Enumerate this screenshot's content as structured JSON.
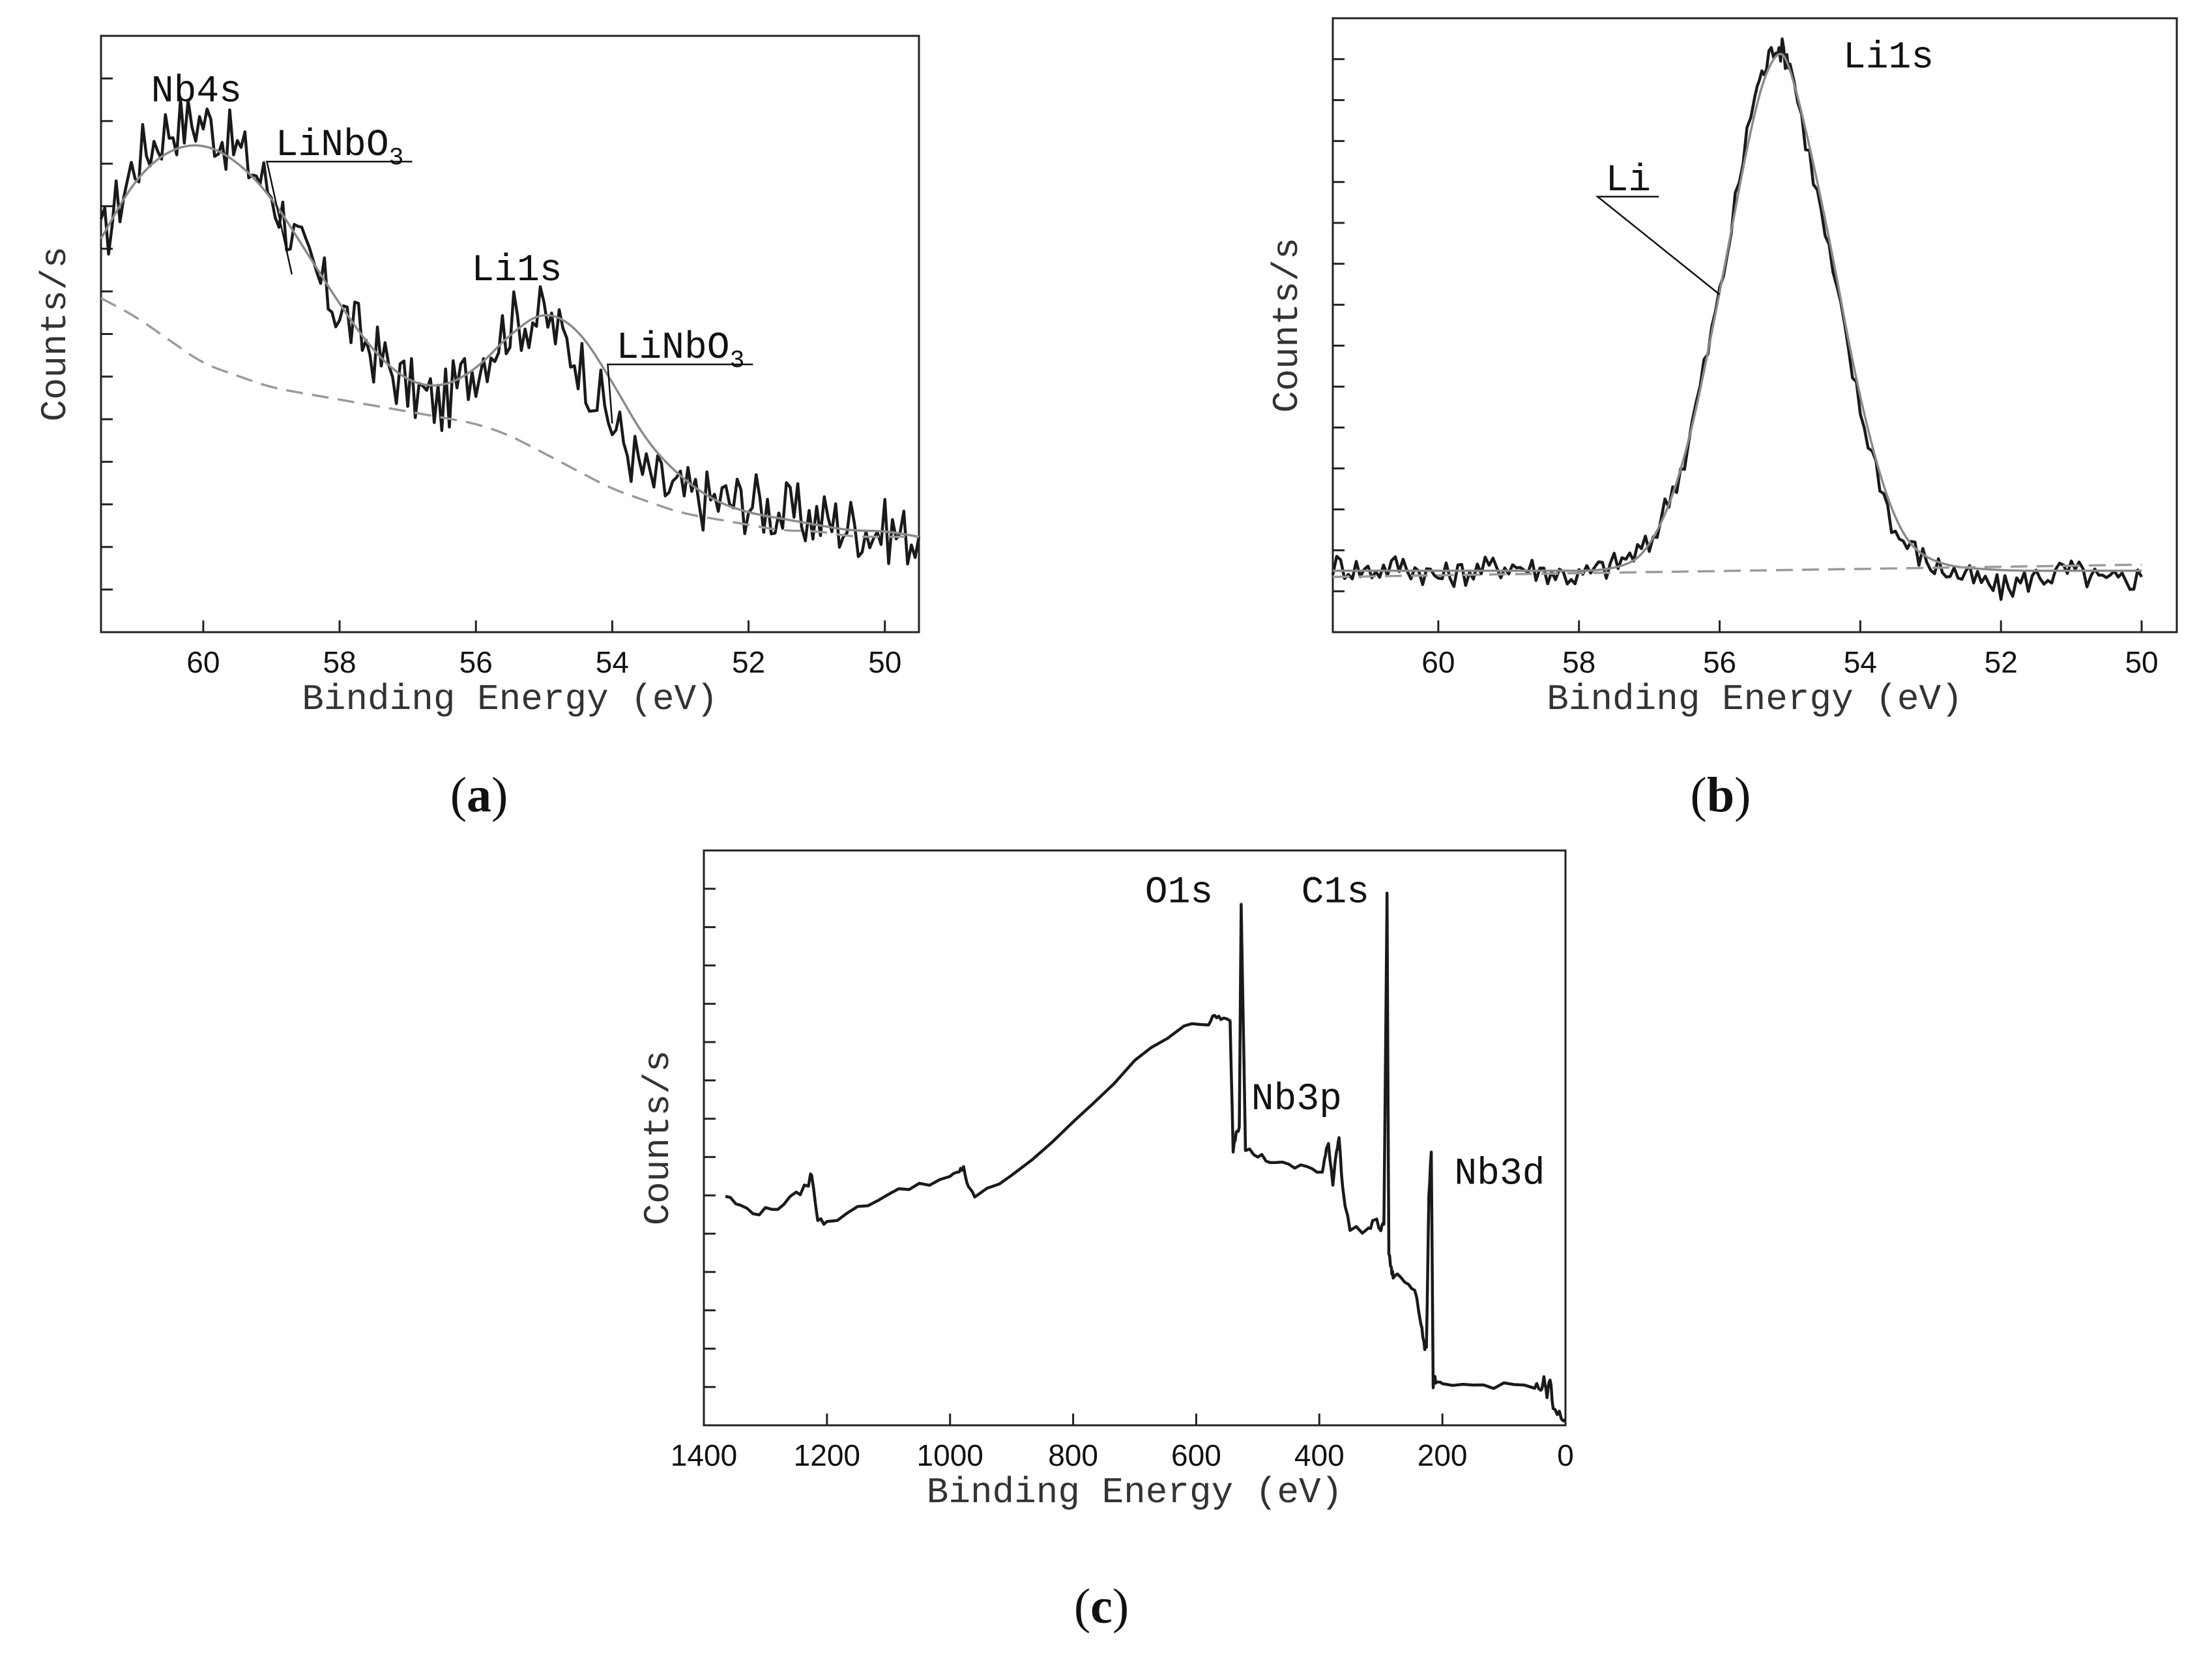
{
  "chart_data": [
    {
      "id": "a",
      "panel_label": "a",
      "type": "line",
      "xlabel": "Binding Energy (eV)",
      "ylabel": "Counts/s",
      "xlim": [
        61.5,
        49.5
      ],
      "ylim": [
        0,
        100
      ],
      "xticks": [
        60,
        58,
        56,
        54,
        52,
        50
      ],
      "n_yticks": 13,
      "series": [
        {
          "name": "measured",
          "style": "data",
          "x": [
            61.5,
            61.0,
            60.5,
            60.0,
            59.5,
            59.0,
            58.5,
            58.0,
            57.5,
            57.0,
            56.5,
            56.0,
            55.5,
            55.0,
            54.5,
            54.0,
            53.5,
            53.0,
            52.5,
            52.0,
            51.5,
            51.0,
            50.5,
            50.0,
            49.5
          ],
          "y": [
            65,
            79,
            85,
            86,
            81,
            74,
            62,
            54,
            47,
            41,
            38,
            45,
            52,
            53,
            46,
            35,
            26,
            23,
            22,
            22,
            20,
            19,
            18,
            17,
            16
          ]
        },
        {
          "name": "fit",
          "style": "fit",
          "x": [
            61.5,
            61.0,
            60.5,
            60.0,
            59.5,
            59.0,
            58.5,
            58.0,
            57.5,
            57.0,
            56.5,
            56.0,
            55.5,
            55.0,
            54.5,
            54.0,
            53.5,
            53.0,
            52.5,
            52.0,
            51.5,
            51.0,
            50.5,
            50.0,
            49.5
          ],
          "y": [
            66,
            76,
            81,
            82,
            79,
            73,
            64,
            55,
            47,
            42,
            41,
            44,
            50,
            54,
            51,
            42,
            32,
            26,
            22,
            20,
            19,
            18,
            17,
            17,
            16
          ]
        },
        {
          "name": "background",
          "style": "bg",
          "x": [
            61.5,
            61.0,
            60.5,
            60.0,
            59.5,
            59.0,
            58.5,
            58.0,
            57.5,
            57.0,
            56.5,
            56.0,
            55.5,
            55.0,
            54.5,
            54.0,
            53.5,
            53.0,
            52.5,
            52.0,
            51.5,
            51.0,
            50.5,
            50.0,
            49.5
          ],
          "y": [
            56,
            53,
            49,
            45,
            43,
            41,
            40,
            39,
            38,
            37,
            36,
            35,
            33,
            30,
            27,
            24,
            22,
            20,
            19,
            18,
            17,
            17,
            16,
            16,
            16
          ]
        }
      ],
      "annotations": [
        {
          "text": "Nb4s",
          "x": 60.1,
          "y": 89
        },
        {
          "text": "Li1s",
          "x": 55.4,
          "y": 59
        },
        {
          "text": "LiNbO",
          "sub": "3",
          "x": 58.0,
          "y": 80,
          "leader_to": [
            58.7,
            60
          ]
        },
        {
          "text": "LiNbO",
          "sub": "3",
          "x": 53.0,
          "y": 46,
          "leader_to": [
            54.0,
            35
          ]
        }
      ]
    },
    {
      "id": "b",
      "panel_label": "b",
      "type": "line",
      "xlabel": "Binding Energy (eV)",
      "ylabel": "Counts/s",
      "xlim": [
        61.5,
        49.5
      ],
      "ylim": [
        0,
        100
      ],
      "xticks": [
        60,
        58,
        56,
        54,
        52,
        50
      ],
      "n_yticks": 14,
      "series": [
        {
          "name": "measured",
          "style": "data",
          "x": [
            61.5,
            61.0,
            60.5,
            60.0,
            59.5,
            59.0,
            58.5,
            58.0,
            57.5,
            57.0,
            56.5,
            56.0,
            55.5,
            55.2,
            55.0,
            54.5,
            54.0,
            53.5,
            53.0,
            52.5,
            52.0,
            51.5,
            51.0,
            50.5,
            50.0
          ],
          "y": [
            11,
            10,
            11,
            9,
            10,
            11,
            10,
            9,
            11,
            14,
            28,
            55,
            88,
            96,
            93,
            65,
            36,
            16,
            11,
            9,
            7,
            9,
            10,
            8,
            9
          ]
        },
        {
          "name": "fit",
          "style": "fit",
          "x": [
            61.5,
            60.0,
            58.5,
            57.5,
            57.0,
            56.5,
            56.0,
            55.5,
            55.2,
            55.0,
            54.5,
            54.0,
            53.5,
            53.0,
            52.0,
            51.0,
            50.0
          ],
          "y": [
            10,
            10,
            10,
            10,
            13,
            27,
            55,
            86,
            95,
            93,
            68,
            37,
            17,
            11,
            10,
            10,
            10
          ]
        },
        {
          "name": "background",
          "style": "bg",
          "x": [
            61.5,
            50.0
          ],
          "y": [
            9,
            11
          ]
        }
      ],
      "annotations": [
        {
          "text": "Li1s",
          "x": 53.6,
          "y": 92
        },
        {
          "text": "Li",
          "x": 57.3,
          "y": 72,
          "leader_to": [
            56.0,
            55
          ]
        }
      ]
    },
    {
      "id": "c",
      "panel_label": "c",
      "type": "line",
      "xlabel": "Binding Energy (eV)",
      "ylabel": "Counts/s",
      "xlim": [
        1400,
        0
      ],
      "ylim": [
        0,
        100
      ],
      "xticks": [
        1400,
        1200,
        1000,
        800,
        600,
        400,
        200,
        0
      ],
      "n_yticks": 14,
      "series": [
        {
          "name": "survey",
          "style": "data",
          "x": [
            1365,
            1340,
            1310,
            1280,
            1250,
            1230,
            1225,
            1215,
            1200,
            1150,
            1100,
            1050,
            1000,
            985,
            978,
            970,
            960,
            900,
            800,
            700,
            620,
            580,
            570,
            560,
            545,
            540,
            535,
            530,
            527,
            520,
            500,
            480,
            450,
            420,
            395,
            390,
            385,
            378,
            372,
            368,
            362,
            350,
            320,
            310,
            300,
            295,
            290,
            287,
            283,
            280,
            270,
            260,
            245,
            235,
            230,
            226,
            222,
            218,
            215,
            212,
            210,
            200,
            150,
            100,
            50,
            40,
            35,
            30,
            25,
            20,
            10,
            0
          ],
          "y": [
            40,
            38,
            37,
            38,
            40,
            42,
            44,
            36,
            35,
            38,
            40,
            42,
            43,
            44,
            45,
            41,
            40,
            43,
            53,
            63,
            70,
            70,
            71,
            71,
            70,
            48,
            51,
            52,
            91,
            48,
            47,
            46,
            45,
            45,
            44,
            47,
            49,
            42,
            48,
            50,
            41,
            34,
            34,
            36,
            34,
            35,
            92,
            30,
            27,
            26,
            26,
            25,
            24,
            18,
            14,
            13,
            40,
            48,
            7,
            8,
            7,
            7,
            7,
            7,
            7,
            6,
            8,
            5,
            8,
            3,
            2,
            1
          ]
        }
      ],
      "annotations": [
        {
          "text": "O1s",
          "x": 628,
          "y": 91
        },
        {
          "text": "C1s",
          "x": 374,
          "y": 91
        },
        {
          "text": "Nb3p",
          "x": 437,
          "y": 55
        },
        {
          "text": "Nb3d",
          "x": 107,
          "y": 42
        }
      ]
    }
  ]
}
